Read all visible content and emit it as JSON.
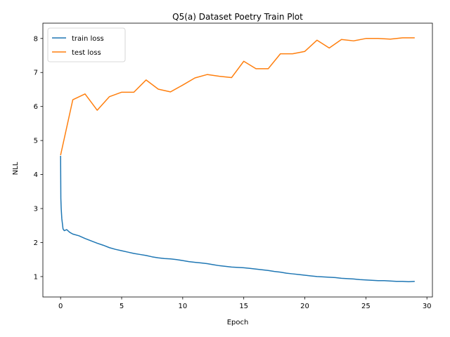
{
  "chart_data": {
    "type": "line",
    "title": "Q5(a) Dataset Poetry Train Plot",
    "xlabel": "Epoch",
    "ylabel": "NLL",
    "xlim": [
      -1.45,
      30.45
    ],
    "ylim": [
      0.4,
      8.45
    ],
    "xticks": [
      0,
      5,
      10,
      15,
      20,
      25,
      30
    ],
    "yticks": [
      1,
      2,
      3,
      4,
      5,
      6,
      7,
      8
    ],
    "grid": false,
    "legend_position": "top-left",
    "series": [
      {
        "name": "train loss",
        "color": "#1f77b4",
        "x": [
          0,
          0.02,
          0.05,
          0.1,
          0.15,
          0.2,
          0.3,
          0.5,
          0.75,
          1,
          1.5,
          2,
          2.5,
          3,
          3.5,
          4,
          4.5,
          5,
          5.5,
          6,
          6.5,
          7,
          7.5,
          8,
          8.5,
          9,
          9.5,
          10,
          10.5,
          11,
          11.5,
          12,
          12.5,
          13,
          13.5,
          14,
          14.5,
          15,
          15.5,
          16,
          16.5,
          17,
          17.5,
          18,
          18.5,
          19,
          19.5,
          20,
          20.5,
          21,
          21.5,
          22,
          22.5,
          23,
          23.5,
          24,
          24.5,
          25,
          25.5,
          26,
          26.5,
          27,
          27.5,
          28,
          28.5,
          29
        ],
        "y": [
          4.55,
          3.3,
          3.0,
          2.7,
          2.55,
          2.4,
          2.35,
          2.38,
          2.3,
          2.25,
          2.2,
          2.12,
          2.05,
          1.98,
          1.92,
          1.85,
          1.8,
          1.76,
          1.72,
          1.68,
          1.65,
          1.62,
          1.58,
          1.55,
          1.53,
          1.52,
          1.5,
          1.47,
          1.44,
          1.42,
          1.4,
          1.38,
          1.35,
          1.32,
          1.3,
          1.28,
          1.27,
          1.26,
          1.24,
          1.22,
          1.2,
          1.18,
          1.15,
          1.13,
          1.1,
          1.08,
          1.06,
          1.04,
          1.02,
          1.0,
          0.99,
          0.98,
          0.97,
          0.95,
          0.94,
          0.93,
          0.91,
          0.9,
          0.89,
          0.88,
          0.88,
          0.87,
          0.86,
          0.86,
          0.85,
          0.86
        ]
      },
      {
        "name": "test loss",
        "color": "#ff7f0e",
        "x": [
          0,
          1,
          2,
          3,
          4,
          5,
          6,
          7,
          8,
          9,
          10,
          11,
          12,
          13,
          14,
          15,
          16,
          17,
          18,
          19,
          20,
          21,
          22,
          23,
          24,
          25,
          26,
          27,
          28,
          29
        ],
        "y": [
          4.57,
          6.2,
          6.37,
          5.89,
          6.29,
          6.42,
          6.42,
          6.78,
          6.51,
          6.43,
          6.63,
          6.84,
          6.94,
          6.89,
          6.85,
          7.33,
          7.11,
          7.11,
          7.55,
          7.55,
          7.62,
          7.95,
          7.72,
          7.97,
          7.93,
          8.0,
          8.0,
          7.98,
          8.02,
          8.02
        ]
      }
    ]
  }
}
